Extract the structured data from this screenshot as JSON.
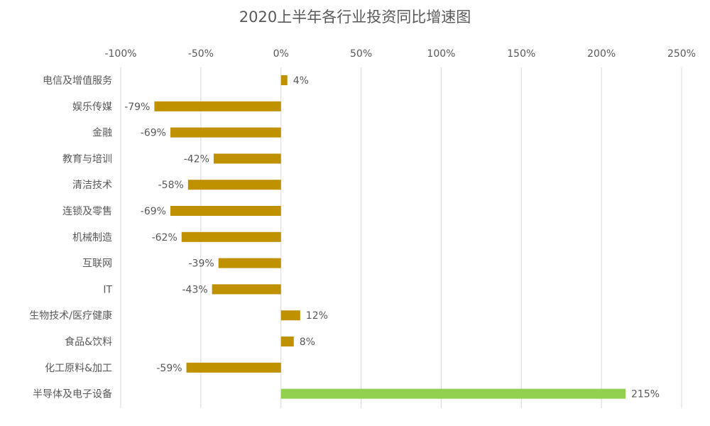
{
  "chart_data": {
    "type": "bar",
    "orientation": "horizontal",
    "title": "2020上半年各行业投资同比增速图",
    "xlabel": "",
    "ylabel": "",
    "xlim": [
      -100,
      250
    ],
    "x_ticks": [
      -100,
      -50,
      0,
      50,
      100,
      150,
      200,
      250
    ],
    "x_tick_labels": [
      "-100%",
      "-50%",
      "0%",
      "50%",
      "100%",
      "150%",
      "200%",
      "250%"
    ],
    "x_axis_position": "top",
    "grid": true,
    "legend": "none",
    "categories": [
      "电信及增值服务",
      "娱乐传媒",
      "金融",
      "教育与培训",
      "清洁技术",
      "连锁及零售",
      "机械制造",
      "互联网",
      "IT",
      "生物技术/医疗健康",
      "食品&饮料",
      "化工原料&加工",
      "半导体及电子设备"
    ],
    "values": [
      4,
      -79,
      -69,
      -42,
      -58,
      -69,
      -62,
      -39,
      -43,
      12,
      8,
      -59,
      215
    ],
    "data_labels": [
      "4%",
      "-79%",
      "-69%",
      "-42%",
      "-58%",
      "-69%",
      "-62%",
      "-39%",
      "-43%",
      "12%",
      "8%",
      "-59%",
      "215%"
    ],
    "colors": {
      "default": "#BF9000",
      "highlight": "#92D050",
      "grid": "#D9D9D9",
      "text": "#595959"
    },
    "highlight_index": 12
  }
}
